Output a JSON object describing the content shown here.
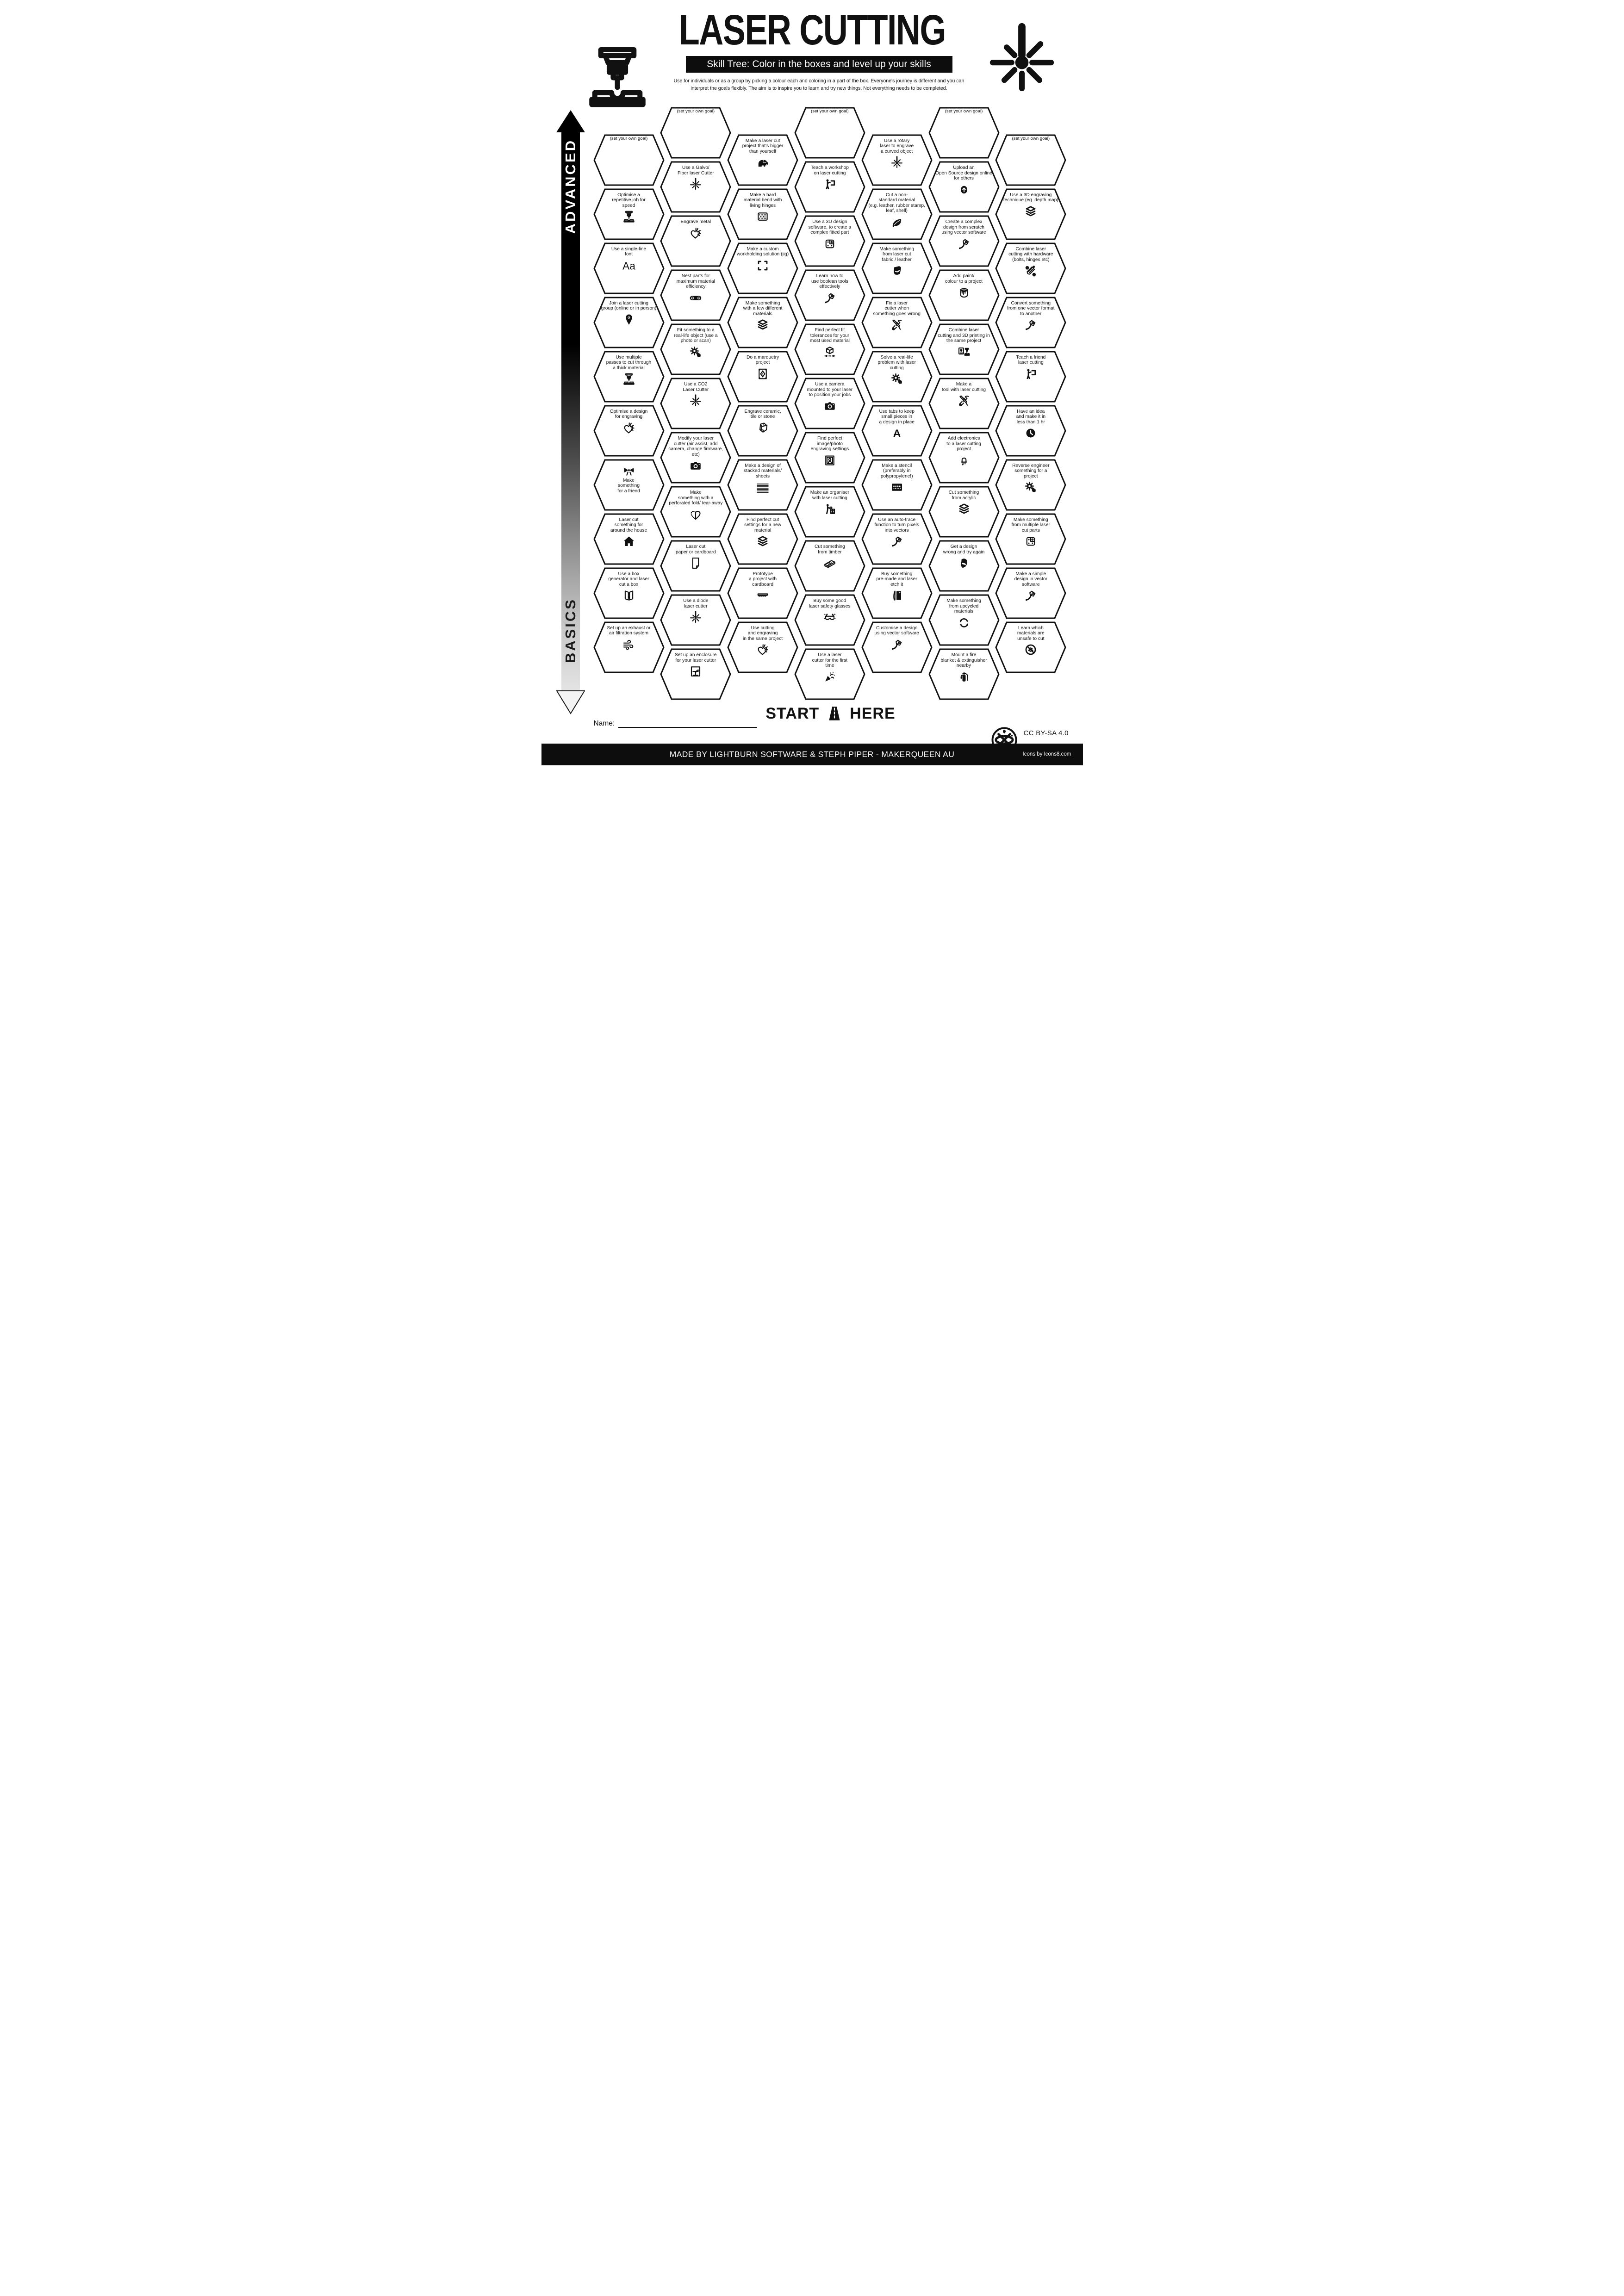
{
  "header": {
    "title": "LASER CUTTING",
    "subtitle": "Skill Tree:  Color in the boxes and level up your skills",
    "description_line1": "Use for individuals or as a group by picking a colour each and coloring in a part of the box.  Everyone's journey is different and you can",
    "description_line2": "interpret the goals flexibly.  The aim is to inspire you to learn and try new things. Not everything needs to be completed.",
    "logo_icon": "laser-cutter-machine-icon",
    "decoration_icon": "laser-beam-icon"
  },
  "axis": {
    "top_label": "ADVANCED",
    "bottom_label": "BASICS"
  },
  "start_marker": {
    "left": "START",
    "right": "HERE",
    "icon": "road-icon"
  },
  "name_field": {
    "label": "Name:"
  },
  "footer": {
    "credit": "MADE BY LIGHTBURN SOFTWARE & STEPH PIPER  -  MAKERQUEEN AU",
    "license": "CC BY-SA 4.0",
    "icons_credit": "Icons by Icons8.com",
    "badge_icon": "makerqueen-badge-icon"
  },
  "colors": {
    "ink": "#111111",
    "paper": "#ffffff",
    "bar": "#0d0d0d"
  },
  "hexes": [
    {
      "id": "goal-1",
      "col": 1,
      "row": 0,
      "goal": true,
      "label": "(set your own goal)"
    },
    {
      "id": "optimise-repetitive-job",
      "col": 1,
      "row": 1,
      "label": "Optimise a\nrepetitive job for\nspeed",
      "icon": "laser-cutter-machine-icon"
    },
    {
      "id": "single-line-font",
      "col": 1,
      "row": 2,
      "label": "Use a single-line\nfont",
      "icon": "aa-letters-icon"
    },
    {
      "id": "join-laser-group",
      "col": 1,
      "row": 3,
      "label": "Join a laser cutting\ngroup (online or in person)",
      "icon": "location-pin-icon"
    },
    {
      "id": "multiple-passes",
      "col": 1,
      "row": 4,
      "label": "Use multiple\npasses to cut through\na thick material",
      "icon": "laser-cutter-machine-icon"
    },
    {
      "id": "optimise-design-engraving",
      "col": 1,
      "row": 5,
      "label": "Optimise a design\nfor engraving",
      "icon": "heart-laser-icon"
    },
    {
      "id": "make-something-friend",
      "col": 1,
      "row": 6,
      "icon_first": true,
      "label": "Make\nsomething\nfor a friend",
      "icon": "gift-bow-icon"
    },
    {
      "id": "around-the-house",
      "col": 1,
      "row": 7,
      "label": "Laser cut\nsomething for\naround the house",
      "icon": "house-icon"
    },
    {
      "id": "box-generator",
      "col": 1,
      "row": 8,
      "label": "Use a box\ngenerator and laser\ncut a box",
      "icon": "box-generator-icon"
    },
    {
      "id": "exhaust-filtration",
      "col": 1,
      "row": 9,
      "label": "Set up an exhaust or\nair filtration system",
      "icon": "wind-icon"
    },
    {
      "id": "goal-2",
      "col": 2,
      "row": 0,
      "goal": true,
      "label": "(set your own goal)"
    },
    {
      "id": "galvo-fiber",
      "col": 2,
      "row": 1,
      "label": "Use a Galvo/\nFiber laser Cutter",
      "icon": "laser-beam-icon"
    },
    {
      "id": "engrave-metal",
      "col": 2,
      "row": 2,
      "label": "Engrave metal",
      "icon": "heart-laser-icon"
    },
    {
      "id": "nest-parts",
      "col": 2,
      "row": 3,
      "label": "Nest parts for\nmaximum material\nefficiency",
      "icon": "nest-belt-icon"
    },
    {
      "id": "fit-real-life-object",
      "col": 2,
      "row": 4,
      "label": "Fit something to a\nreal-life object (use a\nphoto or scan)",
      "icon": "gear-hand-icon"
    },
    {
      "id": "co2-laser",
      "col": 2,
      "row": 5,
      "label": "Use a CO2\nLaser Cutter",
      "icon": "laser-beam-icon"
    },
    {
      "id": "modify-laser-cutter",
      "col": 2,
      "row": 6,
      "label": "Modify  your laser\ncutter (air assist, add\ncamera, change firmware,\netc)",
      "icon": "camera-icon"
    },
    {
      "id": "perforated-fold",
      "col": 2,
      "row": 7,
      "label": "Make\nsomething with a\nperforated fold/ tear-away",
      "icon": "perforated-heart-icon"
    },
    {
      "id": "paper-cardboard",
      "col": 2,
      "row": 8,
      "label": "Laser cut\npaper or cardboard",
      "icon": "paper-sheet-icon"
    },
    {
      "id": "diode-laser",
      "col": 2,
      "row": 9,
      "label": "Use a diode\nlaser cutter",
      "icon": "laser-beam-icon"
    },
    {
      "id": "enclosure",
      "col": 2,
      "row": 10,
      "label": "Set up an enclosure\nfor your laser cutter",
      "icon": "enclosure-icon"
    },
    {
      "id": "bigger-than-yourself",
      "col": 3,
      "row": 0,
      "label": "Make a laser cut\nproject  that's bigger\nthan yourself",
      "icon": "elephant-icon"
    },
    {
      "id": "living-hinges",
      "col": 3,
      "row": 1,
      "label": "Make a hard\nmaterial bend with\nliving hinges",
      "icon": "living-hinge-icon"
    },
    {
      "id": "workholding-jig",
      "col": 3,
      "row": 2,
      "label": "Make a custom\nworkholding solution (jig)",
      "icon": "jig-brackets-icon"
    },
    {
      "id": "few-different-materials",
      "col": 3,
      "row": 3,
      "label": "Make something\nwith a few different\nmaterials",
      "icon": "layers-icon"
    },
    {
      "id": "marquetry",
      "col": 3,
      "row": 4,
      "label": "Do a marquetry\nproject",
      "icon": "marquetry-icon"
    },
    {
      "id": "ceramic-tile-stone",
      "col": 3,
      "row": 5,
      "label": "Engrave ceramic,\ntile or stone",
      "icon": "stone-icon"
    },
    {
      "id": "stacked-sheets",
      "col": 3,
      "row": 6,
      "label": "Make a design of\nstacked materials/\nsheets",
      "icon": "striped-heart-icon"
    },
    {
      "id": "settings-new-material",
      "col": 3,
      "row": 7,
      "label": "Find perfect cut\nsettings for a new\nmaterial",
      "icon": "layers-icon"
    },
    {
      "id": "prototype-cardboard",
      "col": 3,
      "row": 8,
      "label": "Prototype\na project with\ncardboard",
      "icon": "cardboard-icon"
    },
    {
      "id": "cut-engrave-same",
      "col": 3,
      "row": 9,
      "label": "Use cutting\nand engraving\nin the same project",
      "icon": "heart-laser-icon"
    },
    {
      "id": "goal-3",
      "col": 4,
      "row": 0,
      "goal": true,
      "label": "(set your own goal)"
    },
    {
      "id": "teach-workshop",
      "col": 4,
      "row": 1,
      "label": "Teach a workshop\non laser cutting",
      "icon": "presenter-icon"
    },
    {
      "id": "complex-fitted-part",
      "col": 4,
      "row": 2,
      "label": "Use a 3D design\nsoftware, to create a\ncomplex fitted part",
      "icon": "fitted-part-icon"
    },
    {
      "id": "boolean-tools",
      "col": 4,
      "row": 3,
      "label": "Learn how to\nuse boolean tools\neffectively",
      "icon": "pen-tool-icon"
    },
    {
      "id": "fit-tolerances",
      "col": 4,
      "row": 4,
      "label": "Find perfect fit\ntolerances for your\nmost used material",
      "icon": "tolerance-icon"
    },
    {
      "id": "camera-positioning",
      "col": 4,
      "row": 5,
      "label": "Use a camera\nmounted to your laser\nto position your jobs",
      "icon": "camera-icon"
    },
    {
      "id": "photo-engraving-settings",
      "col": 4,
      "row": 6,
      "label": "Find perfect\nimage/photo\nengraving settings",
      "icon": "photo-frame-icon"
    },
    {
      "id": "organiser",
      "col": 4,
      "row": 7,
      "label": "Make an organiser\nwith laser cutting",
      "icon": "organiser-icon"
    },
    {
      "id": "timber",
      "col": 4,
      "row": 8,
      "label": "Cut something\nfrom timber",
      "icon": "timber-icon"
    },
    {
      "id": "safety-glasses",
      "col": 4,
      "row": 9,
      "label": "Buy some good\nlaser safety glasses",
      "icon": "safety-glasses-icon"
    },
    {
      "id": "first-time",
      "col": 4,
      "row": 10,
      "label": "Use a laser\ncutter for the first\ntime",
      "icon": "party-popper-icon"
    },
    {
      "id": "rotary-laser",
      "col": 5,
      "row": 0,
      "label": "Use a rotary\nlaser to engrave\na curved object",
      "icon": "laser-beam-icon"
    },
    {
      "id": "non-standard-material",
      "col": 5,
      "row": 1,
      "label": "Cut a non-\nstandard material\n(e.g. leather, rubber stamp,\nleaf, shell)",
      "icon": "leaf-icon"
    },
    {
      "id": "fabric-leather",
      "col": 5,
      "row": 2,
      "label": "Make something\nfrom laser cut\nfabric / leather",
      "icon": "fabric-icon"
    },
    {
      "id": "fix-laser-cutter",
      "col": 5,
      "row": 3,
      "label": "Fix a laser\ncutter when\nsomething goes wrong",
      "icon": "crossed-tools-icon"
    },
    {
      "id": "solve-real-problem",
      "col": 5,
      "row": 4,
      "label": "Solve a real-life\nproblem with laser\ncutting",
      "icon": "gear-hand-icon"
    },
    {
      "id": "use-tabs",
      "col": 5,
      "row": 5,
      "label": "Use tabs to keep\nsmall pieces in\na design in place",
      "icon": "tabs-icon"
    },
    {
      "id": "stencil",
      "col": 5,
      "row": 6,
      "label": "Make a stencil\n(preferably in\npolypropylene!)",
      "icon": "stencil-icon"
    },
    {
      "id": "auto-trace",
      "col": 5,
      "row": 7,
      "label": "Use an auto-trace\nfunction to turn pixels\ninto vectors",
      "icon": "pen-tool-icon"
    },
    {
      "id": "premade-etch",
      "col": 5,
      "row": 8,
      "label": "Buy something\npre-made and laser\netch it",
      "icon": "etch-door-icon"
    },
    {
      "id": "customise-design",
      "col": 5,
      "row": 9,
      "label": "Customise a design\nusing vector software",
      "icon": "pen-tool-icon"
    },
    {
      "id": "goal-4",
      "col": 6,
      "row": 0,
      "goal": true,
      "label": "(set your own goal)"
    },
    {
      "id": "upload-open-source",
      "col": 6,
      "row": 1,
      "label": "Upload an\nOpen Source design online\nfor others",
      "icon": "upload-icon"
    },
    {
      "id": "design-from-scratch",
      "col": 6,
      "row": 2,
      "label": "Create a complex\ndesign from scratch\nusing vector software",
      "icon": "pen-tool-icon"
    },
    {
      "id": "add-paint",
      "col": 6,
      "row": 3,
      "label": "Add paint/\ncolour to a project",
      "icon": "paint-bucket-icon"
    },
    {
      "id": "combine-3d-printing",
      "col": 6,
      "row": 4,
      "label": "Combine laser\ncutting and 3D printing in\nthe same project",
      "icon": "print-laser-combo-icon"
    },
    {
      "id": "tool-with-laser",
      "col": 6,
      "row": 5,
      "label": "Make a\ntool with laser cutting",
      "icon": "crossed-tools-icon"
    },
    {
      "id": "add-electronics",
      "col": 6,
      "row": 6,
      "label": "Add electronics\nto a laser cutting\nproject",
      "icon": "led-icon"
    },
    {
      "id": "cut-acrylic",
      "col": 6,
      "row": 7,
      "label": "Cut something\nfrom acrylic",
      "icon": "layers-icon"
    },
    {
      "id": "design-wrong-retry",
      "col": 6,
      "row": 8,
      "label": "Get a design\nwrong and try again",
      "icon": "facepalm-icon"
    },
    {
      "id": "upcycled-materials",
      "col": 6,
      "row": 9,
      "label": "Make something\nfrom upcycled\nmaterials",
      "icon": "recycle-icon"
    },
    {
      "id": "fire-blanket",
      "col": 6,
      "row": 10,
      "label": "Mount a fire\nblanket & extinguisher\nnearby",
      "icon": "fire-extinguisher-icon"
    },
    {
      "id": "goal-5",
      "col": 7,
      "row": 0,
      "goal": true,
      "label": "(set your own goal)"
    },
    {
      "id": "depth-map-engraving",
      "col": 7,
      "row": 1,
      "label": "Use a 3D engraving\ntechnique (eg. depth map)",
      "icon": "layers-icon"
    },
    {
      "id": "hardware-combine",
      "col": 7,
      "row": 2,
      "label": "Combine laser\ncutting with hardware\n(bolts, hinges etc)",
      "icon": "hardware-bolts-icon"
    },
    {
      "id": "convert-vector",
      "col": 7,
      "row": 3,
      "label": "Convert something\nfrom one vector format\nto another",
      "icon": "pen-tool-icon"
    },
    {
      "id": "teach-friend",
      "col": 7,
      "row": 4,
      "label": "Teach a friend\nlaser cutting",
      "icon": "presenter-icon"
    },
    {
      "id": "idea-one-hour",
      "col": 7,
      "row": 5,
      "label": "Have an idea\nand make it in\nless than 1 hr",
      "icon": "clock-icon"
    },
    {
      "id": "reverse-engineer",
      "col": 7,
      "row": 6,
      "label": "Reverse engineer\nsomething for a\nproject",
      "icon": "gear-hand-icon"
    },
    {
      "id": "multiple-parts",
      "col": 7,
      "row": 7,
      "label": "Make something\nfrom multiple laser\ncut parts",
      "icon": "fitted-part-icon"
    },
    {
      "id": "simple-vector-design",
      "col": 7,
      "row": 8,
      "label": "Make a simple\ndesign in vector\nsoftware",
      "icon": "pen-tool-icon"
    },
    {
      "id": "unsafe-materials",
      "col": 7,
      "row": 9,
      "label": "Learn which\nmaterials are\nunsafe to cut",
      "icon": "unsafe-materials-icon"
    }
  ]
}
